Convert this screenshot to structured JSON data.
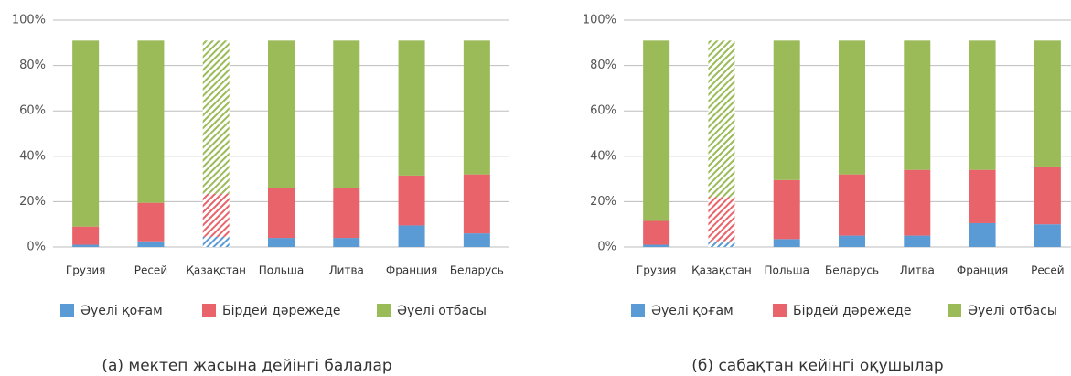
{
  "chart_data": [
    {
      "type": "bar",
      "stacked": true,
      "caption": "(а) мектеп жасына дейінгі балалар",
      "categories": [
        "Грузия",
        "Ресей",
        "Қазақстан",
        "Польша",
        "Литва",
        "Франция",
        "Беларусь"
      ],
      "hatched": [
        2
      ],
      "series": [
        {
          "name": "Әуелі қоғам",
          "color": "#5b9bd5",
          "values": [
            1,
            2.5,
            4.5,
            4,
            4,
            9.5,
            6
          ]
        },
        {
          "name": "Бірдей дәрежеде",
          "color": "#e8646a",
          "values": [
            8,
            17,
            19,
            22,
            22,
            22,
            26
          ]
        },
        {
          "name": "Әуелі отбасы",
          "color": "#9bbb59",
          "values": [
            82,
            71.5,
            67.5,
            65,
            65,
            59.5,
            59
          ]
        }
      ],
      "ylim": [
        0,
        100
      ],
      "yticks": [
        {
          "value": 0,
          "label": "0%"
        },
        {
          "value": 20,
          "label": "20%"
        },
        {
          "value": 40,
          "label": "40%"
        },
        {
          "value": 60,
          "label": "60%"
        },
        {
          "value": 80,
          "label": "80%"
        },
        {
          "value": 100,
          "label": "100%"
        }
      ],
      "grid": true,
      "legend": "bottom"
    },
    {
      "type": "bar",
      "stacked": true,
      "caption": "(б) сабақтан кейінгі оқушылар",
      "categories": [
        "Грузия",
        "Қазақстан",
        "Польша",
        "Беларусь",
        "Литва",
        "Франция",
        "Ресей"
      ],
      "hatched": [
        1
      ],
      "series": [
        {
          "name": "Әуелі қоғам",
          "color": "#5b9bd5",
          "values": [
            1,
            2.5,
            3.5,
            5,
            5,
            10.5,
            10
          ]
        },
        {
          "name": "Бірдей дәрежеде",
          "color": "#e8646a",
          "values": [
            10.5,
            19.5,
            26,
            27,
            29,
            23.5,
            25.5
          ]
        },
        {
          "name": "Әуелі отбасы",
          "color": "#9bbb59",
          "values": [
            79.5,
            69,
            61.5,
            59,
            57,
            57,
            55.5
          ]
        }
      ],
      "ylim": [
        0,
        100
      ],
      "yticks": [
        {
          "value": 0,
          "label": "0%"
        },
        {
          "value": 20,
          "label": "20%"
        },
        {
          "value": 40,
          "label": "40%"
        },
        {
          "value": 60,
          "label": "60%"
        },
        {
          "value": 80,
          "label": "80%"
        },
        {
          "value": 100,
          "label": "100%"
        }
      ],
      "grid": true,
      "legend": "bottom"
    }
  ]
}
